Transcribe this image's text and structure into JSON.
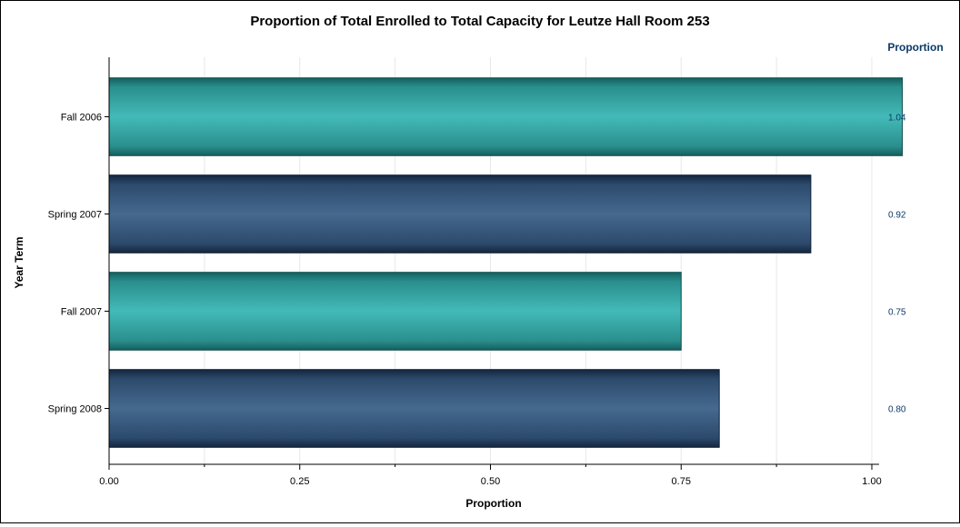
{
  "chart_data": {
    "type": "bar",
    "orientation": "horizontal",
    "title": "Proportion of Total Enrolled to Total Capacity for Leutze Hall Room 253",
    "xlabel": "Proportion",
    "ylabel": "Year Term",
    "categories": [
      "Fall 2006",
      "Spring 2007",
      "Fall 2007",
      "Spring 2008"
    ],
    "values": [
      1.04,
      0.92,
      0.75,
      0.8
    ],
    "value_labels": [
      "1.04",
      "0.92",
      "0.75",
      "0.80"
    ],
    "value_column_header": "Proportion",
    "xlim": [
      0,
      1.0
    ],
    "xticks": [
      "0.00",
      "0.25",
      "0.50",
      "0.75",
      "1.00"
    ],
    "xtick_values": [
      0,
      0.25,
      0.5,
      0.75,
      1.0
    ],
    "grid": true,
    "bar_colors": [
      "#3fb7b6",
      "#44678f",
      "#3fb7b6",
      "#44678f"
    ]
  }
}
